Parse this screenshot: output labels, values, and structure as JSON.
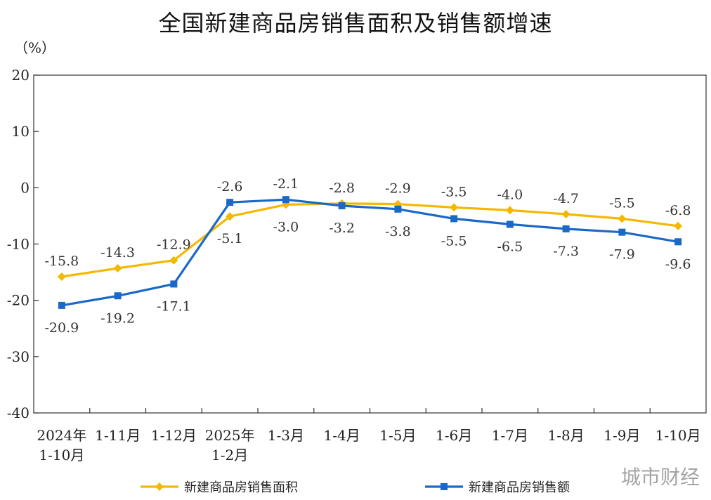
{
  "chart_data": {
    "type": "line",
    "title": "全国新建商品房销售面积及销售额增速",
    "unit": "（%）",
    "ylim": [
      -40,
      20
    ],
    "yticks": [
      20,
      10,
      0,
      -10,
      -20,
      -30,
      -40
    ],
    "ytick_labels": [
      "20",
      "10",
      "0",
      "-10",
      "-20",
      "-30",
      "-40"
    ],
    "categories": [
      [
        "2024年",
        "1-10月"
      ],
      [
        "1-11月"
      ],
      [
        "1-12月"
      ],
      [
        "2025年",
        "1-2月"
      ],
      [
        "1-3月"
      ],
      [
        "1-4月"
      ],
      [
        "1-5月"
      ],
      [
        "1-6月"
      ],
      [
        "1-7月"
      ],
      [
        "1-8月"
      ],
      [
        "1-9月"
      ],
      [
        "1-10月"
      ]
    ],
    "series": [
      {
        "name": "新建商品房销售面积",
        "color": "#F5B800",
        "marker": "diamond",
        "values": [
          -15.8,
          -14.3,
          -12.9,
          -5.1,
          -3.0,
          -2.8,
          -2.9,
          -3.5,
          -4.0,
          -4.7,
          -5.5,
          -6.8
        ],
        "labels": [
          "-15.8",
          "-14.3",
          "-12.9",
          "-5.1",
          "-3.0",
          "-2.8",
          "-2.9",
          "-3.5",
          "-4.0",
          "-4.7",
          "-5.5",
          "-6.8"
        ]
      },
      {
        "name": "新建商品房销售额",
        "color": "#1A68C8",
        "marker": "square",
        "values": [
          -20.9,
          -19.2,
          -17.1,
          -2.6,
          -2.1,
          -3.2,
          -3.8,
          -5.5,
          -6.5,
          -7.3,
          -7.9,
          -9.6
        ],
        "labels": [
          "-20.9",
          "-19.2",
          "-17.1",
          "-2.6",
          "-2.1",
          "-3.2",
          "-3.8",
          "-5.5",
          "-6.5",
          "-7.3",
          "-7.9",
          "-9.6"
        ]
      }
    ],
    "legend_position": "bottom",
    "grid": false
  },
  "watermark": "城市财经"
}
